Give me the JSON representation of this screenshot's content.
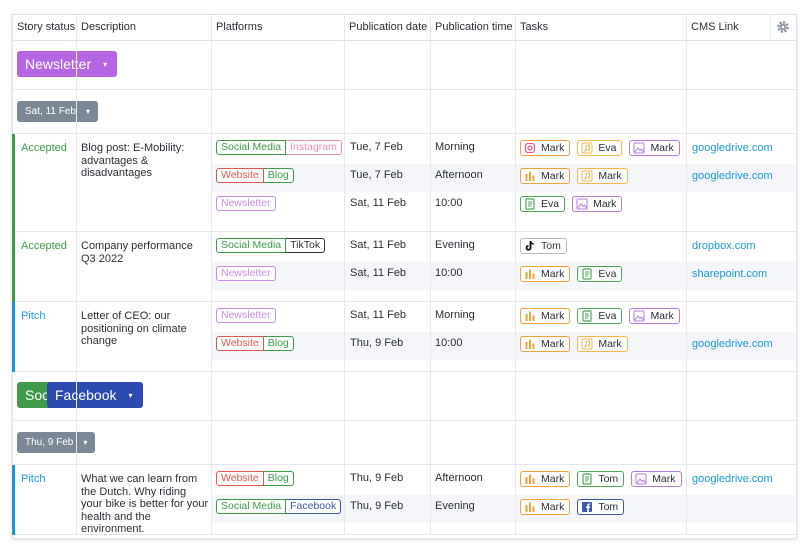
{
  "header": {
    "columns": [
      "Story status",
      "Description",
      "Platforms",
      "Publication date",
      "Publication time",
      "Tasks",
      "CMS Link"
    ]
  },
  "groups": [
    {
      "label": "Newsletter",
      "color": "#b466e3",
      "dates": [
        {
          "label": "Sat, 11 Feb",
          "stories": [
            {
              "status": "Accepted",
              "color": "#3f9b4b",
              "description": "Blog post: E-Mobility: advantages & disadvantages",
              "items": [
                {
                  "platforms": [
                    {
                      "name": "Social Media",
                      "color": "#3f9b4b"
                    },
                    {
                      "name": "Instagram",
                      "color": "#ef8fbc"
                    }
                  ],
                  "date": "Tue, 7 Feb",
                  "time": "Morning",
                  "tasks": [
                    {
                      "name": "Mark",
                      "icon": "instagram",
                      "color": "#f2994a"
                    },
                    {
                      "name": "Eva",
                      "icon": "music",
                      "color": "#f2b84a"
                    },
                    {
                      "name": "Mark",
                      "icon": "image",
                      "color": "#b57be0"
                    }
                  ],
                  "link": "googledrive.com"
                },
                {
                  "platforms": [
                    {
                      "name": "Website",
                      "color": "#e35757"
                    },
                    {
                      "name": "Blog",
                      "color": "#3f9b4b"
                    }
                  ],
                  "date": "Tue, 7 Feb",
                  "time": "Afternoon",
                  "tasks": [
                    {
                      "name": "Mark",
                      "icon": "bars",
                      "color": "#f2a23a"
                    },
                    {
                      "name": "Mark",
                      "icon": "music",
                      "color": "#f2b84a"
                    }
                  ],
                  "link": "googledrive.com"
                },
                {
                  "platforms": [
                    {
                      "name": "Newsletter",
                      "color": "#c98de6"
                    }
                  ],
                  "date": "Sat, 11 Feb",
                  "time": "10:00",
                  "tasks": [
                    {
                      "name": "Eva",
                      "icon": "doc",
                      "color": "#4fa85a"
                    },
                    {
                      "name": "Mark",
                      "icon": "image",
                      "color": "#b57be0"
                    }
                  ],
                  "link": null
                }
              ]
            },
            {
              "status": "Accepted",
              "color": "#3f9b4b",
              "description": "Company performance Q3 2022",
              "items": [
                {
                  "platforms": [
                    {
                      "name": "Social Media",
                      "color": "#3f9b4b"
                    },
                    {
                      "name": "TikTok",
                      "color": "#333333"
                    }
                  ],
                  "date": "Sat, 11 Feb",
                  "time": "Evening",
                  "tasks": [
                    {
                      "name": "Tom",
                      "icon": "tiktok",
                      "color": "#b5bac0"
                    }
                  ],
                  "link": "dropbox.com"
                },
                {
                  "platforms": [
                    {
                      "name": "Newsletter",
                      "color": "#c98de6"
                    }
                  ],
                  "date": "Sat, 11 Feb",
                  "time": "10:00",
                  "tasks": [
                    {
                      "name": "Mark",
                      "icon": "bars",
                      "color": "#f2a23a"
                    },
                    {
                      "name": "Eva",
                      "icon": "doc",
                      "color": "#4fa85a"
                    }
                  ],
                  "link": "sharepoint.com"
                }
              ]
            },
            {
              "status": "Pitch",
              "color": "#1b98d5",
              "description": "Letter of CEO: our positioning on climate change",
              "items": [
                {
                  "platforms": [
                    {
                      "name": "Newsletter",
                      "color": "#c98de6"
                    }
                  ],
                  "date": "Sat, 11 Feb",
                  "time": "Morning",
                  "tasks": [
                    {
                      "name": "Mark",
                      "icon": "bars",
                      "color": "#f2a23a"
                    },
                    {
                      "name": "Eva",
                      "icon": "doc",
                      "color": "#4fa85a"
                    },
                    {
                      "name": "Mark",
                      "icon": "image",
                      "color": "#b57be0"
                    }
                  ],
                  "link": null
                },
                {
                  "platforms": [
                    {
                      "name": "Website",
                      "color": "#e35757"
                    },
                    {
                      "name": "Blog",
                      "color": "#3f9b4b"
                    }
                  ],
                  "date": "Thu, 9 Feb",
                  "time": "10:00",
                  "tasks": [
                    {
                      "name": "Mark",
                      "icon": "bars",
                      "color": "#f2a23a"
                    },
                    {
                      "name": "Mark",
                      "icon": "music",
                      "color": "#f2b84a"
                    }
                  ],
                  "link": "googledrive.com"
                }
              ]
            }
          ]
        }
      ]
    },
    {
      "label": "Soc",
      "color": "#3f9b4b",
      "overlay": {
        "label": "Facebook",
        "color": "#2d4ab0"
      },
      "dates": [
        {
          "label": "Thu, 9 Feb",
          "stories": [
            {
              "status": "Pitch",
              "color": "#1b98d5",
              "description": "What we can learn from the Dutch. Why riding your bike is better for your health and the environment.",
              "items": [
                {
                  "platforms": [
                    {
                      "name": "Website",
                      "color": "#e35757"
                    },
                    {
                      "name": "Blog",
                      "color": "#3f9b4b"
                    }
                  ],
                  "date": "Thu, 9 Feb",
                  "time": "Afternoon",
                  "tasks": [
                    {
                      "name": "Mark",
                      "icon": "bars",
                      "color": "#f2a23a"
                    },
                    {
                      "name": "Tom",
                      "icon": "doc",
                      "color": "#4fa85a"
                    },
                    {
                      "name": "Mark",
                      "icon": "image",
                      "color": "#b57be0"
                    }
                  ],
                  "link": "googledrive.com"
                },
                {
                  "platforms": [
                    {
                      "name": "Social Media",
                      "color": "#3f9b4b"
                    },
                    {
                      "name": "Facebook",
                      "color": "#3d5aa8"
                    }
                  ],
                  "date": "Thu, 9 Feb",
                  "time": "Evening",
                  "tasks": [
                    {
                      "name": "Mark",
                      "icon": "bars",
                      "color": "#f2a23a"
                    },
                    {
                      "name": "Tom",
                      "icon": "facebook",
                      "color": "#3d5aa8"
                    }
                  ],
                  "link": null
                }
              ]
            }
          ]
        }
      ]
    }
  ]
}
